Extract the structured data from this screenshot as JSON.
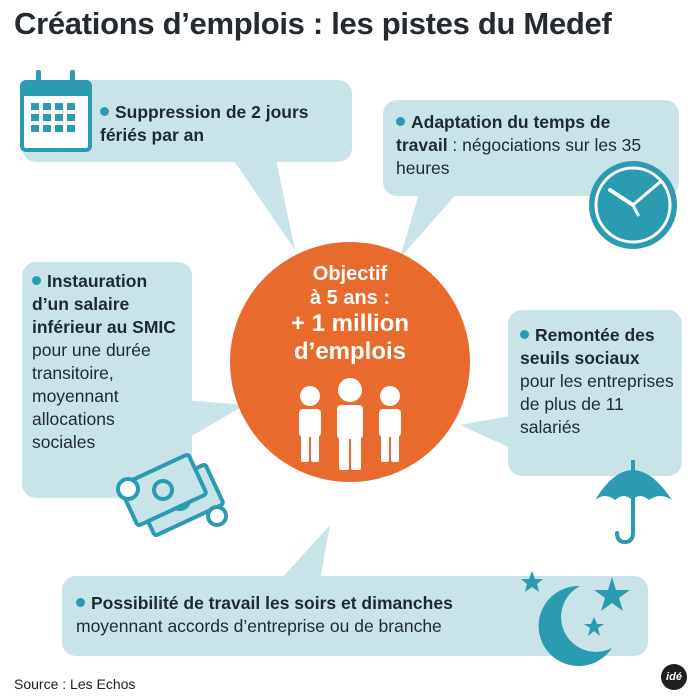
{
  "title": "Créations d’emplois : les pistes du Medef",
  "colors": {
    "bubble": "#c9e4e9",
    "accent": "#2a9bb0",
    "circle": "#e86a2c"
  },
  "center": {
    "line1": "Objectif",
    "line2": "à 5 ans :",
    "line3": "+ 1 million",
    "line4": "d’emplois"
  },
  "items": [
    {
      "bold": "Suppression de 2 jours fériés par an",
      "rest": "",
      "icon": "calendar-icon"
    },
    {
      "bold": "Adaptation du temps de travail",
      "rest": " : négociations sur les 35 heures",
      "icon": "clock-icon"
    },
    {
      "bold": "Instauration d’un salaire inférieur au SMIC",
      "rest": " pour une durée transitoire, moyennant allocations sociales",
      "icon": "money-icon"
    },
    {
      "bold": "Remontée des seuils sociaux",
      "rest": " pour les entreprises de plus de 11 salariés",
      "icon": "umbrella-icon"
    },
    {
      "bold": "Possibilité de travail les soirs et dimanches",
      "rest": "moyennant accords d’entreprise ou de branche",
      "icon": "moon-stars-icon"
    }
  ],
  "people_icon": "people-icon",
  "source": "Source : Les Echos",
  "logo": "idé"
}
